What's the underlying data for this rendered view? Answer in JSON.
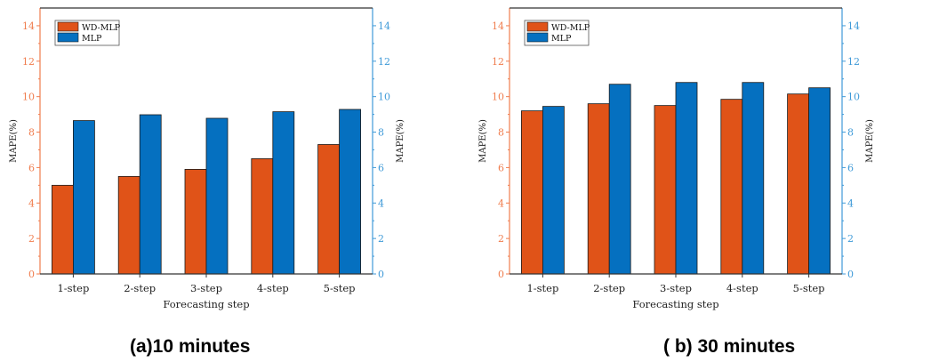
{
  "colors": {
    "wd_mlp": "#e05318",
    "mlp": "#0570c0",
    "left_axis": "#f07d4e",
    "right_axis": "#3f9ad8",
    "axis": "#333333"
  },
  "chart_data": [
    {
      "type": "bar",
      "caption": "(a)10 minutes",
      "categories": [
        "1-step",
        "2-step",
        "3-step",
        "4-step",
        "5-step"
      ],
      "xlabel": "Forecasting step",
      "ylabel": "MAPE(%)",
      "ylabel_right": "MAPE(%)",
      "ylim": [
        0,
        15
      ],
      "yticks": [
        "0",
        "2",
        "4",
        "6",
        "8",
        "10",
        "12",
        "14"
      ],
      "legend_position": "top-left",
      "grid": false,
      "series": [
        {
          "name": "WD-MLP",
          "color": "#e05318",
          "values": [
            5.0,
            5.5,
            5.9,
            6.5,
            7.3
          ]
        },
        {
          "name": "MLP",
          "color": "#0570c0",
          "values": [
            8.65,
            8.98,
            8.78,
            9.15,
            9.28
          ]
        }
      ]
    },
    {
      "type": "bar",
      "caption": "( b) 30 minutes",
      "categories": [
        "1-step",
        "2-step",
        "3-step",
        "4-step",
        "5-step"
      ],
      "xlabel": "Forecasting step",
      "ylabel": "MAPE(%)",
      "ylabel_right": "MAPE(%)",
      "ylim": [
        0,
        15
      ],
      "yticks": [
        "0",
        "2",
        "4",
        "6",
        "8",
        "10",
        "12",
        "14"
      ],
      "legend_position": "top-left",
      "grid": false,
      "series": [
        {
          "name": "WD-MLP",
          "color": "#e05318",
          "values": [
            9.2,
            9.6,
            9.5,
            9.85,
            10.15
          ]
        },
        {
          "name": "MLP",
          "color": "#0570c0",
          "values": [
            9.45,
            10.7,
            10.8,
            10.8,
            10.5
          ]
        }
      ]
    }
  ]
}
